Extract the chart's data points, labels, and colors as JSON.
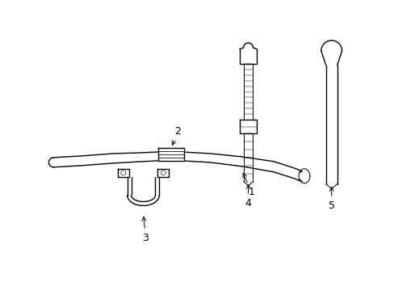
{
  "background_color": "#ffffff",
  "line_color": "#000000",
  "lw": 1.0,
  "tlw": 0.7,
  "figsize": [
    4.89,
    3.6
  ],
  "dpi": 100,
  "font_size": 9
}
